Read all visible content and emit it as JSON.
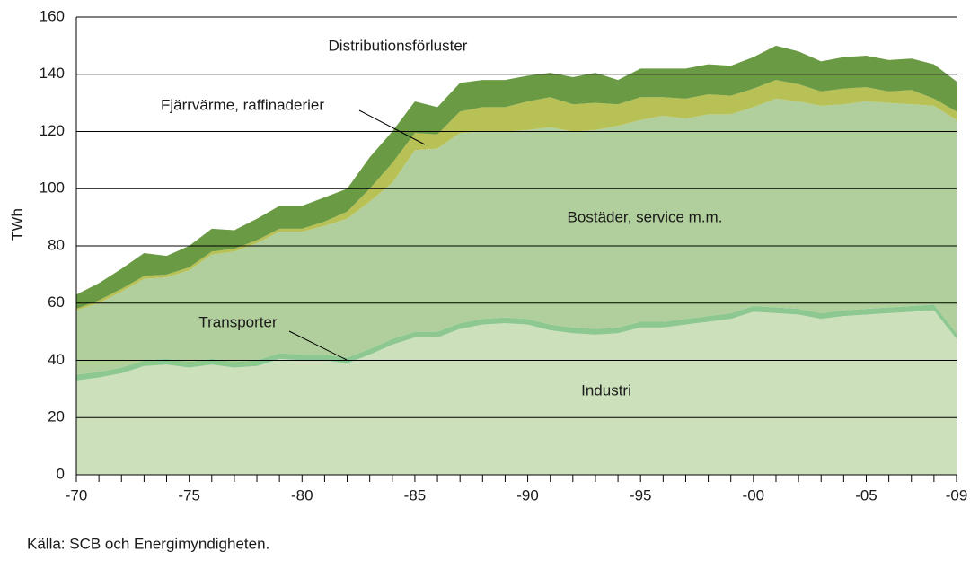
{
  "chart_data": {
    "type": "stacked_area",
    "y_label": "TWh",
    "source": "Källa: SCB och Energimyndigheten.",
    "categories": [
      "-70",
      null,
      null,
      null,
      null,
      "-75",
      null,
      null,
      null,
      null,
      "-80",
      null,
      null,
      null,
      null,
      "-85",
      null,
      null,
      null,
      null,
      "-90",
      null,
      null,
      null,
      null,
      "-95",
      null,
      null,
      null,
      null,
      "-00",
      null,
      null,
      null,
      null,
      "-05",
      null,
      null,
      null,
      "-09"
    ],
    "series": [
      {
        "name": "Industri",
        "color": "#cde0bc",
        "values": [
          33,
          34,
          35.5,
          38,
          38.5,
          37.5,
          38.5,
          37.5,
          38,
          40.5,
          40,
          40,
          39,
          42,
          45.5,
          48,
          48,
          51,
          52.5,
          53,
          52.5,
          50.5,
          49.5,
          49,
          49.5,
          51.5,
          51.5,
          52.5,
          53.5,
          54.5,
          57,
          56.5,
          56,
          54.5,
          55.5,
          56,
          56.5,
          57,
          57.5,
          47.5
        ]
      },
      {
        "name": "Transporter",
        "color": "#8cc890",
        "values": [
          2,
          2,
          2,
          2,
          2,
          2,
          2,
          2,
          2,
          2,
          2,
          2,
          2,
          2,
          2,
          2,
          2,
          2,
          2,
          2,
          2,
          2,
          2,
          2,
          2,
          2,
          2,
          2,
          2,
          2,
          2,
          2,
          2,
          2,
          2,
          2,
          2,
          2,
          2,
          2
        ]
      },
      {
        "name": "Bostäder, service m.m.",
        "color": "#b1cf9c",
        "values": [
          22.5,
          24,
          26.5,
          28.5,
          28.5,
          32,
          36.5,
          38.5,
          41,
          42.5,
          43,
          45,
          48.5,
          51.5,
          54.5,
          63.5,
          64,
          66.5,
          65.5,
          65,
          66,
          69,
          68.5,
          69.5,
          70.5,
          70.5,
          72,
          70,
          70.5,
          69.5,
          69.5,
          73,
          72.5,
          72.5,
          72,
          72.5,
          71.5,
          70.5,
          69.5,
          74.5
        ]
      },
      {
        "name": "Fjärrvärme, raffinaderier",
        "color": "#b8c155",
        "values": [
          0.5,
          1,
          1,
          1,
          1,
          1,
          1,
          1,
          1,
          1,
          1,
          1.5,
          2.5,
          4.5,
          7,
          6,
          5,
          7.5,
          8.5,
          8.5,
          10,
          10.5,
          9.5,
          9.5,
          7.5,
          8,
          6.5,
          7,
          7,
          6.5,
          6.5,
          6.5,
          6,
          5,
          5.5,
          5,
          4,
          5,
          2.5,
          3
        ]
      },
      {
        "name": "Distributionsförluster",
        "color": "#6a9a44",
        "values": [
          5,
          6,
          7,
          8,
          6.5,
          7.5,
          8,
          6.5,
          7.5,
          8,
          8,
          8.5,
          8,
          11,
          11,
          11,
          9.5,
          10,
          9.5,
          9.5,
          9,
          8.5,
          9.5,
          10.5,
          8.5,
          10,
          10,
          10.5,
          10.5,
          10.5,
          11,
          12,
          11.5,
          10.5,
          11,
          11,
          11,
          11,
          12,
          10.5
        ]
      }
    ],
    "ylim": [
      0,
      160
    ],
    "yticks": [
      0,
      20,
      40,
      60,
      80,
      100,
      120,
      140,
      160
    ],
    "grid": true
  }
}
